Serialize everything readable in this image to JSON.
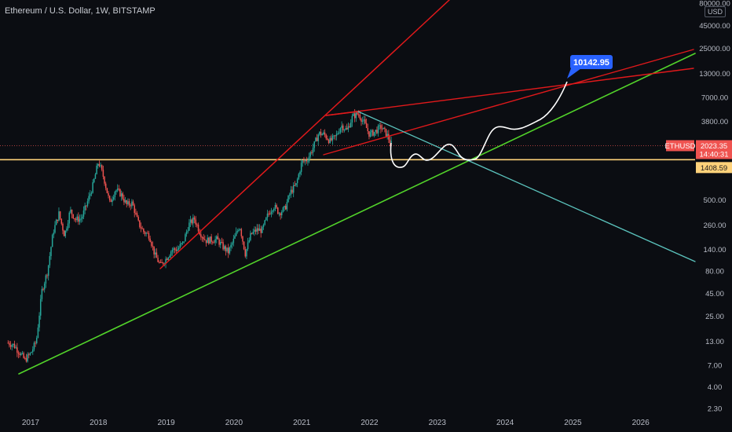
{
  "header": {
    "title": "Ethereum / U.S. Dollar, 1W, BITSTAMP",
    "currency_badge": "USD"
  },
  "colors": {
    "background": "#0b0d12",
    "up_candle": "#26a69a",
    "down_candle": "#ef5350",
    "red_line": "#e0191b",
    "green_line": "#52d32a",
    "teal_line": "#5bc3bd",
    "yellow_line": "#ffd27a",
    "projection": "#ffffff",
    "callout": "#2962ff",
    "eth_tag": "#ef5350",
    "level_tag": "#ffd27a"
  },
  "chart_data": {
    "type": "candlestick",
    "symbol": "ETHUSD",
    "timeframe": "1W",
    "y_scale": "log",
    "y_ticks": [
      "80000.00",
      "45000.00",
      "25000.00",
      "13000.00",
      "7000.00",
      "3800.00",
      "1800.00",
      "500.00",
      "260.00",
      "140.00",
      "80.00",
      "45.00",
      "25.00",
      "13.00",
      "7.00",
      "4.00",
      "2.30"
    ],
    "x_ticks": [
      "2017",
      "2018",
      "2019",
      "2020",
      "2021",
      "2022",
      "2023",
      "2024",
      "2025",
      "2026"
    ],
    "ylim": [
      2.3,
      80000
    ],
    "xlim": [
      "2016-09",
      "2026-10"
    ],
    "price_path": [
      [
        "2016-09",
        12.5
      ],
      [
        "2016-10",
        11.8
      ],
      [
        "2016-11",
        9.8
      ],
      [
        "2016-12",
        8.0
      ],
      [
        "2017-01",
        9.5
      ],
      [
        "2017-02",
        13
      ],
      [
        "2017-03",
        48
      ],
      [
        "2017-04",
        80
      ],
      [
        "2017-05",
        220
      ],
      [
        "2017-06",
        350
      ],
      [
        "2017-07",
        200
      ],
      [
        "2017-08",
        380
      ],
      [
        "2017-09",
        300
      ],
      [
        "2017-10",
        310
      ],
      [
        "2017-11",
        460
      ],
      [
        "2017-12",
        720
      ],
      [
        "2018-01",
        1350
      ],
      [
        "2018-02",
        860
      ],
      [
        "2018-03",
        460
      ],
      [
        "2018-04",
        650
      ],
      [
        "2018-05",
        580
      ],
      [
        "2018-06",
        440
      ],
      [
        "2018-07",
        460
      ],
      [
        "2018-08",
        280
      ],
      [
        "2018-09",
        220
      ],
      [
        "2018-10",
        200
      ],
      [
        "2018-11",
        120
      ],
      [
        "2018-12",
        92
      ],
      [
        "2019-01",
        110
      ],
      [
        "2019-02",
        138
      ],
      [
        "2019-03",
        140
      ],
      [
        "2019-04",
        165
      ],
      [
        "2019-05",
        265
      ],
      [
        "2019-06",
        305
      ],
      [
        "2019-07",
        215
      ],
      [
        "2019-08",
        175
      ],
      [
        "2019-09",
        178
      ],
      [
        "2019-10",
        180
      ],
      [
        "2019-11",
        150
      ],
      [
        "2019-12",
        130
      ],
      [
        "2020-01",
        180
      ],
      [
        "2020-02",
        260
      ],
      [
        "2020-03",
        125
      ],
      [
        "2020-04",
        205
      ],
      [
        "2020-05",
        230
      ],
      [
        "2020-06",
        228
      ],
      [
        "2020-07",
        340
      ],
      [
        "2020-08",
        430
      ],
      [
        "2020-09",
        360
      ],
      [
        "2020-10",
        395
      ],
      [
        "2020-11",
        610
      ],
      [
        "2020-12",
        735
      ],
      [
        "2021-01",
        1310
      ],
      [
        "2021-02",
        1420
      ],
      [
        "2021-03",
        1920
      ],
      [
        "2021-04",
        2780
      ],
      [
        "2021-05",
        2700
      ],
      [
        "2021-06",
        2270
      ],
      [
        "2021-07",
        2530
      ],
      [
        "2021-08",
        3430
      ],
      [
        "2021-09",
        3000
      ],
      [
        "2021-10",
        4290
      ],
      [
        "2021-11",
        4630
      ],
      [
        "2021-12",
        3680
      ],
      [
        "2022-01",
        2690
      ],
      [
        "2022-02",
        2920
      ],
      [
        "2022-03",
        3280
      ],
      [
        "2022-04",
        2730
      ],
      [
        "2022-05",
        2023
      ]
    ],
    "price_tags": [
      {
        "label": "ETHUSD",
        "value": "2023.35",
        "countdown": "14:40:31"
      },
      {
        "value": "1408.59"
      }
    ],
    "projection_target": "10142.95",
    "annotations": [
      "rising wedge",
      "ascending support",
      "descending resistance",
      "horizontal support",
      "projected path"
    ]
  }
}
